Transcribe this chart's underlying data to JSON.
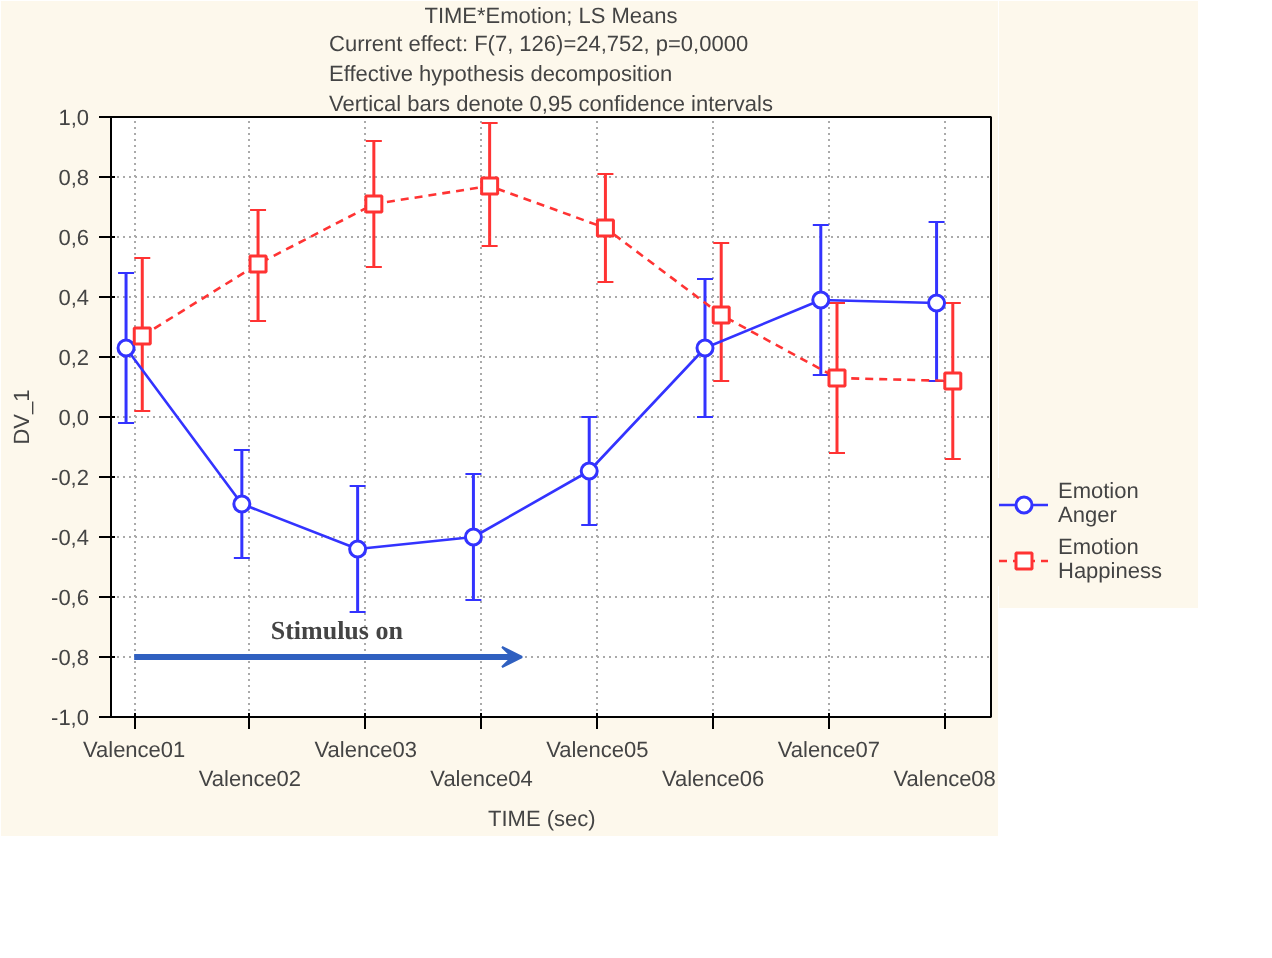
{
  "chart_data": {
    "type": "line",
    "title": "TIME*Emotion; LS Means",
    "subtitle": "Current effect: F(7, 126)=24,752, p=0,0000\nEffective hypothesis decomposition\nVertical bars denote 0,95 confidence intervals",
    "xlabel": "TIME    (sec)",
    "ylabel": "DV_1",
    "categories": [
      "Valence01",
      "Valence02",
      "Valence03",
      "Valence04",
      "Valence05",
      "Valence06",
      "Valence07",
      "Valence08"
    ],
    "series": [
      {
        "name": "Emotion\nAnger",
        "color": "#3333ff",
        "marker": "circle",
        "line_style": "solid",
        "values": [
          0.23,
          -0.29,
          -0.44,
          -0.4,
          -0.18,
          0.23,
          0.39,
          0.38
        ],
        "errors": [
          [
            -0.02,
            0.48
          ],
          [
            -0.47,
            -0.11
          ],
          [
            -0.65,
            -0.23
          ],
          [
            -0.61,
            -0.19
          ],
          [
            -0.36,
            0.0
          ],
          [
            0.0,
            0.46
          ],
          [
            0.14,
            0.64
          ],
          [
            0.12,
            0.65
          ]
        ]
      },
      {
        "name": "Emotion\nHappiness",
        "color": "#ff3333",
        "marker": "square",
        "line_style": "dashed",
        "values": [
          0.27,
          0.51,
          0.71,
          0.77,
          0.63,
          0.34,
          0.13,
          0.12
        ],
        "errors": [
          [
            0.02,
            0.53
          ],
          [
            0.32,
            0.69
          ],
          [
            0.5,
            0.92
          ],
          [
            0.57,
            0.98
          ],
          [
            0.45,
            0.81
          ],
          [
            0.12,
            0.58
          ],
          [
            -0.12,
            0.38
          ],
          [
            -0.14,
            0.38
          ]
        ]
      }
    ],
    "ylim": [
      -1.0,
      1.0
    ],
    "yticks": [
      {
        "value": -1.0,
        "label": "-1,0"
      },
      {
        "value": -0.8,
        "label": "-0,8"
      },
      {
        "value": -0.6,
        "label": "-0,6"
      },
      {
        "value": -0.4,
        "label": "-0,4"
      },
      {
        "value": -0.2,
        "label": "-0,2"
      },
      {
        "value": 0.0,
        "label": "0,0"
      },
      {
        "value": 0.2,
        "label": "0,2"
      },
      {
        "value": 0.4,
        "label": "0,4"
      },
      {
        "value": 0.6,
        "label": "0,6"
      },
      {
        "value": 0.8,
        "label": "0,8"
      },
      {
        "value": 1.0,
        "label": "1,0"
      }
    ],
    "grid": true,
    "legend": "bottom right",
    "annotations": [
      "Stimulus on"
    ]
  }
}
